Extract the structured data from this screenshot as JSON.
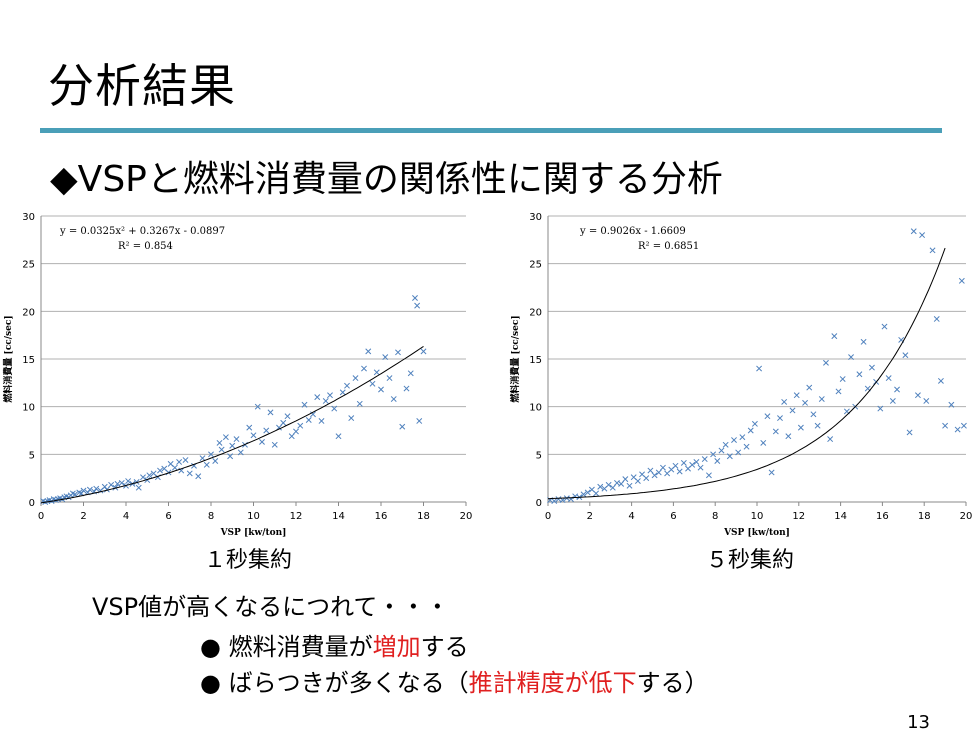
{
  "slide": {
    "title": "分析結果",
    "subtitle": "◆VSPと燃料消費量の関係性に関する分析",
    "page_number": "13"
  },
  "charts_text": {
    "left_caption": "１秒集約",
    "right_caption": "５秒集約"
  },
  "notes": {
    "intro": "VSP値が高くなるにつれて・・・",
    "bullet1_prefix": "●  燃料消費量が",
    "bullet1_highlight": "増加",
    "bullet1_suffix": "する",
    "bullet2_prefix": "●  ばらつきが多くなる（",
    "bullet2_highlight": "推計精度が低下",
    "bullet2_suffix": "する）"
  },
  "colors": {
    "accent_rule": "#4a9fb8",
    "marker": "#4f81bd",
    "highlight": "#e02020"
  },
  "chart_data": [
    {
      "type": "scatter",
      "xlabel": "VSP [kw/ton]",
      "ylabel": "燃料消費量 [cc/sec]",
      "xlim": [
        0,
        20
      ],
      "ylim": [
        0,
        30
      ],
      "xticks": [
        0,
        2,
        4,
        6,
        8,
        10,
        12,
        14,
        16,
        18,
        20
      ],
      "yticks": [
        0,
        5,
        10,
        15,
        20,
        25,
        30
      ],
      "grid": true,
      "trendline": {
        "kind": "polynomial",
        "coef": [
          0.0325,
          0.3267,
          -0.0897
        ],
        "x_range": [
          0,
          18
        ]
      },
      "equation": "y = 0.0325x² + 0.3267x - 0.0897",
      "r2": "R² = 0.854",
      "points": [
        [
          0.1,
          0.1
        ],
        [
          0.2,
          0.0
        ],
        [
          0.3,
          0.1
        ],
        [
          0.4,
          0.2
        ],
        [
          0.5,
          0.1
        ],
        [
          0.6,
          0.3
        ],
        [
          0.7,
          0.2
        ],
        [
          0.8,
          0.3
        ],
        [
          0.9,
          0.4
        ],
        [
          1.0,
          0.3
        ],
        [
          1.1,
          0.5
        ],
        [
          1.2,
          0.6
        ],
        [
          1.3,
          0.5
        ],
        [
          1.4,
          0.7
        ],
        [
          1.5,
          0.9
        ],
        [
          1.6,
          0.8
        ],
        [
          1.8,
          1.0
        ],
        [
          1.9,
          0.9
        ],
        [
          2.0,
          1.2
        ],
        [
          2.2,
          1.0
        ],
        [
          2.3,
          1.3
        ],
        [
          2.5,
          1.1
        ],
        [
          2.6,
          1.4
        ],
        [
          2.8,
          1.2
        ],
        [
          3.0,
          1.6
        ],
        [
          3.1,
          1.3
        ],
        [
          3.3,
          1.8
        ],
        [
          3.5,
          1.5
        ],
        [
          3.6,
          1.9
        ],
        [
          3.8,
          2.0
        ],
        [
          4.0,
          1.7
        ],
        [
          4.1,
          2.2
        ],
        [
          4.3,
          1.9
        ],
        [
          4.5,
          2.1
        ],
        [
          4.6,
          1.5
        ],
        [
          4.8,
          2.6
        ],
        [
          5.0,
          2.3
        ],
        [
          5.1,
          2.8
        ],
        [
          5.3,
          3.0
        ],
        [
          5.5,
          2.6
        ],
        [
          5.6,
          3.3
        ],
        [
          5.8,
          3.5
        ],
        [
          6.0,
          3.1
        ],
        [
          6.1,
          4.0
        ],
        [
          6.3,
          3.6
        ],
        [
          6.5,
          4.2
        ],
        [
          6.6,
          3.3
        ],
        [
          6.8,
          4.4
        ],
        [
          7.0,
          3.0
        ],
        [
          7.2,
          3.8
        ],
        [
          7.4,
          2.7
        ],
        [
          7.6,
          4.6
        ],
        [
          7.8,
          3.9
        ],
        [
          8.0,
          5.0
        ],
        [
          8.2,
          4.3
        ],
        [
          8.4,
          6.2
        ],
        [
          8.5,
          5.5
        ],
        [
          8.7,
          6.8
        ],
        [
          8.9,
          4.8
        ],
        [
          9.0,
          5.9
        ],
        [
          9.2,
          6.6
        ],
        [
          9.4,
          5.2
        ],
        [
          9.6,
          6.0
        ],
        [
          9.8,
          7.8
        ],
        [
          10.0,
          7.0
        ],
        [
          10.2,
          10.0
        ],
        [
          10.4,
          6.3
        ],
        [
          10.6,
          7.5
        ],
        [
          10.8,
          9.4
        ],
        [
          11.0,
          6.0
        ],
        [
          11.2,
          7.8
        ],
        [
          11.4,
          8.3
        ],
        [
          11.6,
          9.0
        ],
        [
          11.8,
          6.9
        ],
        [
          12.0,
          7.4
        ],
        [
          12.2,
          8.0
        ],
        [
          12.4,
          10.2
        ],
        [
          12.6,
          8.6
        ],
        [
          12.8,
          9.2
        ],
        [
          13.0,
          11.0
        ],
        [
          13.2,
          8.5
        ],
        [
          13.4,
          10.6
        ],
        [
          13.6,
          11.2
        ],
        [
          13.8,
          9.8
        ],
        [
          14.0,
          6.9
        ],
        [
          14.2,
          11.5
        ],
        [
          14.4,
          12.2
        ],
        [
          14.6,
          8.8
        ],
        [
          14.8,
          13.0
        ],
        [
          15.0,
          10.3
        ],
        [
          15.2,
          14.0
        ],
        [
          15.4,
          15.8
        ],
        [
          15.6,
          12.4
        ],
        [
          15.8,
          13.6
        ],
        [
          16.0,
          11.8
        ],
        [
          16.2,
          15.2
        ],
        [
          16.4,
          13.0
        ],
        [
          16.6,
          10.8
        ],
        [
          16.8,
          15.7
        ],
        [
          17.0,
          7.9
        ],
        [
          17.2,
          11.9
        ],
        [
          17.4,
          13.5
        ],
        [
          17.6,
          21.4
        ],
        [
          17.7,
          20.6
        ],
        [
          17.8,
          8.5
        ],
        [
          18.0,
          15.8
        ]
      ]
    },
    {
      "type": "scatter",
      "xlabel": "VSP [kw/ton]",
      "ylabel": "燃料消費量 [cc/sec]",
      "xlim": [
        0,
        20
      ],
      "ylim": [
        0,
        30
      ],
      "xticks": [
        0,
        2,
        4,
        6,
        8,
        10,
        12,
        14,
        16,
        18,
        20
      ],
      "yticks": [
        0,
        5,
        10,
        15,
        20,
        25,
        30
      ],
      "grid": true,
      "trendline": {
        "kind": "exponential-like",
        "label_coef": [
          0.9026,
          -1.6609
        ],
        "x_range": [
          0,
          19
        ]
      },
      "equation": "y = 0.9026x - 1.6609",
      "r2": "R² = 0.6851",
      "points": [
        [
          0.1,
          0.2
        ],
        [
          0.3,
          0.1
        ],
        [
          0.5,
          0.3
        ],
        [
          0.7,
          0.2
        ],
        [
          0.9,
          0.4
        ],
        [
          1.1,
          0.3
        ],
        [
          1.3,
          0.6
        ],
        [
          1.5,
          0.5
        ],
        [
          1.7,
          0.8
        ],
        [
          1.9,
          1.0
        ],
        [
          2.1,
          1.3
        ],
        [
          2.3,
          0.9
        ],
        [
          2.5,
          1.6
        ],
        [
          2.7,
          1.4
        ],
        [
          2.9,
          1.8
        ],
        [
          3.1,
          1.5
        ],
        [
          3.3,
          2.0
        ],
        [
          3.5,
          1.9
        ],
        [
          3.7,
          2.4
        ],
        [
          3.9,
          1.7
        ],
        [
          4.1,
          2.6
        ],
        [
          4.3,
          2.2
        ],
        [
          4.5,
          2.9
        ],
        [
          4.7,
          2.5
        ],
        [
          4.9,
          3.3
        ],
        [
          5.1,
          2.8
        ],
        [
          5.3,
          3.1
        ],
        [
          5.5,
          3.6
        ],
        [
          5.7,
          3.0
        ],
        [
          5.9,
          3.4
        ],
        [
          6.1,
          3.8
        ],
        [
          6.3,
          3.2
        ],
        [
          6.5,
          4.1
        ],
        [
          6.7,
          3.5
        ],
        [
          6.9,
          3.9
        ],
        [
          7.1,
          4.2
        ],
        [
          7.3,
          3.6
        ],
        [
          7.5,
          4.5
        ],
        [
          7.7,
          2.8
        ],
        [
          7.9,
          5.0
        ],
        [
          8.1,
          4.3
        ],
        [
          8.3,
          5.4
        ],
        [
          8.5,
          6.0
        ],
        [
          8.7,
          4.8
        ],
        [
          8.9,
          6.5
        ],
        [
          9.1,
          5.2
        ],
        [
          9.3,
          6.8
        ],
        [
          9.5,
          5.8
        ],
        [
          9.7,
          7.5
        ],
        [
          9.9,
          8.2
        ],
        [
          10.1,
          14.0
        ],
        [
          10.3,
          6.2
        ],
        [
          10.5,
          9.0
        ],
        [
          10.7,
          3.1
        ],
        [
          10.9,
          7.4
        ],
        [
          11.1,
          8.8
        ],
        [
          11.3,
          10.5
        ],
        [
          11.5,
          6.9
        ],
        [
          11.7,
          9.6
        ],
        [
          11.9,
          11.2
        ],
        [
          12.1,
          7.8
        ],
        [
          12.3,
          10.4
        ],
        [
          12.5,
          12.0
        ],
        [
          12.7,
          9.2
        ],
        [
          12.9,
          8.0
        ],
        [
          13.1,
          10.8
        ],
        [
          13.3,
          14.6
        ],
        [
          13.5,
          6.6
        ],
        [
          13.7,
          17.4
        ],
        [
          13.9,
          11.6
        ],
        [
          14.1,
          12.9
        ],
        [
          14.3,
          9.5
        ],
        [
          14.5,
          15.2
        ],
        [
          14.7,
          10.0
        ],
        [
          14.9,
          13.4
        ],
        [
          15.1,
          16.8
        ],
        [
          15.3,
          11.9
        ],
        [
          15.5,
          14.1
        ],
        [
          15.7,
          12.6
        ],
        [
          15.9,
          9.8
        ],
        [
          16.1,
          18.4
        ],
        [
          16.3,
          13.0
        ],
        [
          16.5,
          10.6
        ],
        [
          16.7,
          11.8
        ],
        [
          16.9,
          17.0
        ],
        [
          17.1,
          15.4
        ],
        [
          17.3,
          7.3
        ],
        [
          17.5,
          28.4
        ],
        [
          17.7,
          11.2
        ],
        [
          17.9,
          28.0
        ],
        [
          18.1,
          10.6
        ],
        [
          18.4,
          26.4
        ],
        [
          18.6,
          19.2
        ],
        [
          18.8,
          12.7
        ],
        [
          19.0,
          8.0
        ],
        [
          19.3,
          10.2
        ],
        [
          19.6,
          7.6
        ],
        [
          19.8,
          23.2
        ],
        [
          19.9,
          8.0
        ]
      ]
    }
  ]
}
